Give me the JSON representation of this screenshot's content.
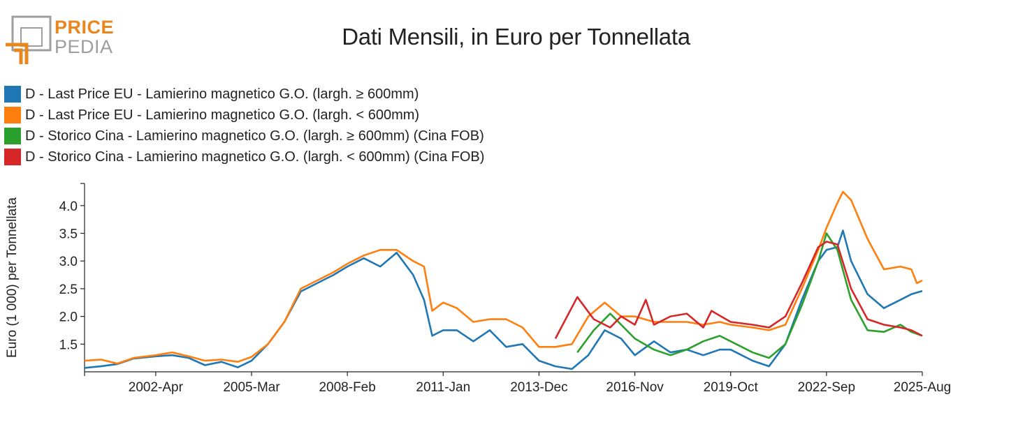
{
  "logo": {
    "line1": "PRICE",
    "line2": "PEDIA",
    "accent_color": "#e8871e",
    "gray_color": "#9e9e9e"
  },
  "chart_data": {
    "type": "line",
    "title": "Dati Mensili, in Euro per Tonnellata",
    "ylabel": "Euro (1 000) per Tonnellata",
    "xlabel": "",
    "x_range": [
      "2000-02",
      "2025-08"
    ],
    "ylim": [
      1.0,
      4.4
    ],
    "yticks": [
      1.5,
      2.0,
      2.5,
      3.0,
      3.5,
      4.0
    ],
    "ytick_labels": [
      "1.5",
      "2.0",
      "2.5",
      "3.0",
      "3.5",
      "4.0"
    ],
    "xticks": [
      "2002-04",
      "2005-03",
      "2008-02",
      "2011-01",
      "2013-12",
      "2016-11",
      "2019-10",
      "2022-09",
      "2025-08"
    ],
    "xtick_labels": [
      "2002-Apr",
      "2005-Mar",
      "2008-Feb",
      "2011-Jan",
      "2013-Dec",
      "2016-Nov",
      "2019-Oct",
      "2022-Sep",
      "2025-Aug"
    ],
    "grid": false,
    "legend_position": "top-left",
    "series": [
      {
        "name": "D - Last Price EU - Lamierino magnetico G.O. (largh. ≥ 600mm)",
        "color": "#1f77b4",
        "points": [
          [
            "2000-02",
            1.07
          ],
          [
            "2000-08",
            1.1
          ],
          [
            "2001-02",
            1.14
          ],
          [
            "2001-08",
            1.24
          ],
          [
            "2002-04",
            1.28
          ],
          [
            "2002-10",
            1.3
          ],
          [
            "2003-04",
            1.25
          ],
          [
            "2003-10",
            1.12
          ],
          [
            "2004-04",
            1.18
          ],
          [
            "2004-10",
            1.08
          ],
          [
            "2005-03",
            1.2
          ],
          [
            "2005-09",
            1.5
          ],
          [
            "2006-03",
            1.9
          ],
          [
            "2006-09",
            2.45
          ],
          [
            "2007-03",
            2.6
          ],
          [
            "2007-09",
            2.75
          ],
          [
            "2008-02",
            2.9
          ],
          [
            "2008-08",
            3.05
          ],
          [
            "2009-02",
            2.9
          ],
          [
            "2009-08",
            3.15
          ],
          [
            "2010-02",
            2.75
          ],
          [
            "2010-06",
            2.3
          ],
          [
            "2010-09",
            1.65
          ],
          [
            "2011-01",
            1.75
          ],
          [
            "2011-06",
            1.75
          ],
          [
            "2011-12",
            1.55
          ],
          [
            "2012-06",
            1.75
          ],
          [
            "2012-12",
            1.45
          ],
          [
            "2013-06",
            1.5
          ],
          [
            "2013-12",
            1.2
          ],
          [
            "2014-06",
            1.1
          ],
          [
            "2014-12",
            1.05
          ],
          [
            "2015-06",
            1.3
          ],
          [
            "2015-12",
            1.75
          ],
          [
            "2016-06",
            1.6
          ],
          [
            "2016-11",
            1.3
          ],
          [
            "2017-06",
            1.55
          ],
          [
            "2017-12",
            1.35
          ],
          [
            "2018-06",
            1.4
          ],
          [
            "2018-12",
            1.3
          ],
          [
            "2019-06",
            1.4
          ],
          [
            "2019-10",
            1.4
          ],
          [
            "2020-06",
            1.2
          ],
          [
            "2020-12",
            1.1
          ],
          [
            "2021-06",
            1.5
          ],
          [
            "2021-12",
            2.3
          ],
          [
            "2022-06",
            3.0
          ],
          [
            "2022-09",
            3.2
          ],
          [
            "2023-01",
            3.25
          ],
          [
            "2023-03",
            3.55
          ],
          [
            "2023-06",
            3.0
          ],
          [
            "2023-12",
            2.4
          ],
          [
            "2024-06",
            2.15
          ],
          [
            "2024-12",
            2.3
          ],
          [
            "2025-04",
            2.4
          ],
          [
            "2025-08",
            2.46
          ]
        ]
      },
      {
        "name": "D - Last Price EU - Lamierino magnetico G.O. (largh. < 600mm)",
        "color": "#ff7f0e",
        "points": [
          [
            "2000-02",
            1.2
          ],
          [
            "2000-08",
            1.22
          ],
          [
            "2001-02",
            1.15
          ],
          [
            "2001-08",
            1.25
          ],
          [
            "2002-04",
            1.3
          ],
          [
            "2002-10",
            1.35
          ],
          [
            "2003-04",
            1.28
          ],
          [
            "2003-10",
            1.2
          ],
          [
            "2004-04",
            1.22
          ],
          [
            "2004-10",
            1.18
          ],
          [
            "2005-03",
            1.27
          ],
          [
            "2005-09",
            1.5
          ],
          [
            "2006-03",
            1.9
          ],
          [
            "2006-09",
            2.5
          ],
          [
            "2007-03",
            2.65
          ],
          [
            "2007-09",
            2.8
          ],
          [
            "2008-02",
            2.95
          ],
          [
            "2008-08",
            3.1
          ],
          [
            "2009-02",
            3.2
          ],
          [
            "2009-08",
            3.2
          ],
          [
            "2010-02",
            3.0
          ],
          [
            "2010-06",
            2.9
          ],
          [
            "2010-09",
            2.1
          ],
          [
            "2011-01",
            2.25
          ],
          [
            "2011-06",
            2.15
          ],
          [
            "2011-12",
            1.9
          ],
          [
            "2012-06",
            1.95
          ],
          [
            "2012-12",
            1.95
          ],
          [
            "2013-06",
            1.8
          ],
          [
            "2013-12",
            1.45
          ],
          [
            "2014-06",
            1.45
          ],
          [
            "2014-12",
            1.5
          ],
          [
            "2015-06",
            2.0
          ],
          [
            "2015-12",
            2.25
          ],
          [
            "2016-06",
            2.0
          ],
          [
            "2016-11",
            2.0
          ],
          [
            "2017-06",
            1.9
          ],
          [
            "2017-12",
            1.9
          ],
          [
            "2018-06",
            1.9
          ],
          [
            "2018-12",
            1.85
          ],
          [
            "2019-06",
            1.9
          ],
          [
            "2019-10",
            1.85
          ],
          [
            "2020-06",
            1.8
          ],
          [
            "2020-12",
            1.75
          ],
          [
            "2021-06",
            1.85
          ],
          [
            "2021-12",
            2.5
          ],
          [
            "2022-06",
            3.2
          ],
          [
            "2022-09",
            3.6
          ],
          [
            "2023-01",
            4.05
          ],
          [
            "2023-03",
            4.25
          ],
          [
            "2023-06",
            4.1
          ],
          [
            "2023-12",
            3.4
          ],
          [
            "2024-06",
            2.85
          ],
          [
            "2024-12",
            2.9
          ],
          [
            "2025-04",
            2.85
          ],
          [
            "2025-06",
            2.6
          ],
          [
            "2025-08",
            2.65
          ]
        ]
      },
      {
        "name": "D - Storico Cina - Lamierino magnetico G.O. (largh. ≥ 600mm) (Cina FOB)",
        "color": "#2ca02c",
        "points": [
          [
            "2015-02",
            1.35
          ],
          [
            "2015-08",
            1.75
          ],
          [
            "2016-02",
            2.05
          ],
          [
            "2016-06",
            1.85
          ],
          [
            "2016-11",
            1.6
          ],
          [
            "2017-06",
            1.4
          ],
          [
            "2017-12",
            1.3
          ],
          [
            "2018-06",
            1.4
          ],
          [
            "2018-12",
            1.55
          ],
          [
            "2019-06",
            1.65
          ],
          [
            "2019-10",
            1.55
          ],
          [
            "2020-06",
            1.35
          ],
          [
            "2020-12",
            1.25
          ],
          [
            "2021-06",
            1.5
          ],
          [
            "2021-12",
            2.2
          ],
          [
            "2022-06",
            3.0
          ],
          [
            "2022-09",
            3.5
          ],
          [
            "2023-01",
            3.2
          ],
          [
            "2023-06",
            2.3
          ],
          [
            "2023-12",
            1.75
          ],
          [
            "2024-06",
            1.72
          ],
          [
            "2024-12",
            1.85
          ],
          [
            "2025-04",
            1.72
          ],
          [
            "2025-08",
            1.65
          ]
        ]
      },
      {
        "name": "D - Storico Cina - Lamierino magnetico G.O. (largh. < 600mm) (Cina FOB)",
        "color": "#d62728",
        "points": [
          [
            "2014-06",
            1.6
          ],
          [
            "2015-02",
            2.35
          ],
          [
            "2015-08",
            1.95
          ],
          [
            "2016-02",
            1.8
          ],
          [
            "2016-06",
            2.0
          ],
          [
            "2016-11",
            1.85
          ],
          [
            "2017-03",
            2.3
          ],
          [
            "2017-06",
            1.85
          ],
          [
            "2017-12",
            2.0
          ],
          [
            "2018-06",
            2.05
          ],
          [
            "2018-12",
            1.8
          ],
          [
            "2019-03",
            2.1
          ],
          [
            "2019-10",
            1.9
          ],
          [
            "2020-06",
            1.85
          ],
          [
            "2020-12",
            1.8
          ],
          [
            "2021-06",
            2.0
          ],
          [
            "2021-12",
            2.6
          ],
          [
            "2022-06",
            3.25
          ],
          [
            "2022-09",
            3.35
          ],
          [
            "2023-01",
            3.3
          ],
          [
            "2023-06",
            2.5
          ],
          [
            "2023-12",
            1.95
          ],
          [
            "2024-06",
            1.85
          ],
          [
            "2024-12",
            1.8
          ],
          [
            "2025-04",
            1.75
          ],
          [
            "2025-08",
            1.65
          ]
        ]
      }
    ]
  }
}
